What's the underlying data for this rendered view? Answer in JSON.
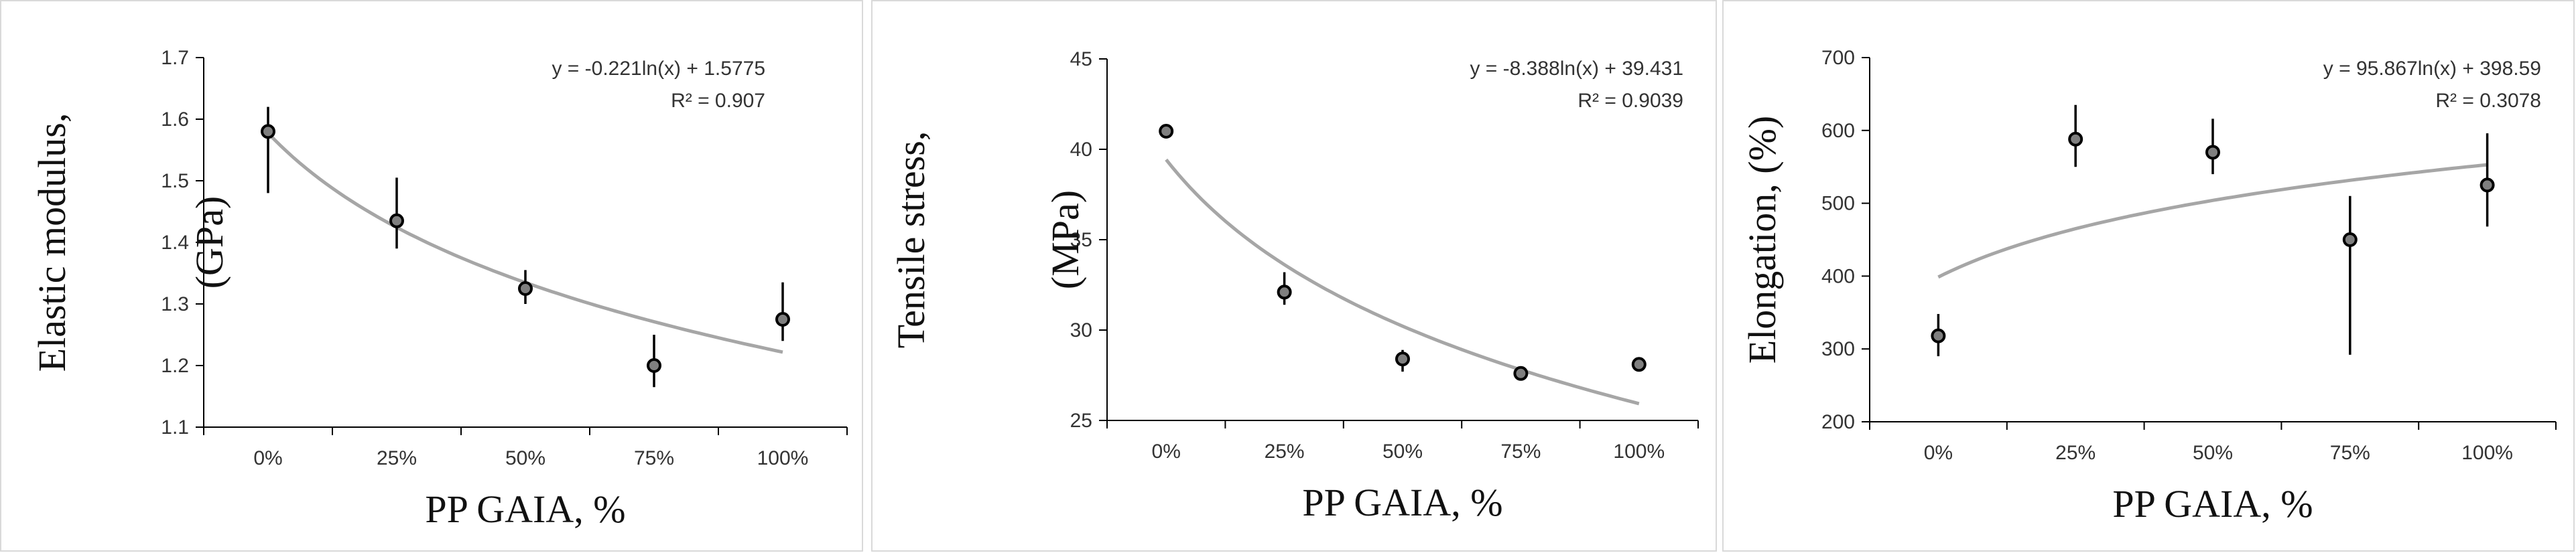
{
  "chart_data": [
    {
      "type": "scatter",
      "categories": [
        "0%",
        "25%",
        "50%",
        "75%",
        "100%"
      ],
      "x": [
        0,
        25,
        50,
        75,
        100
      ],
      "values": [
        1.58,
        1.435,
        1.325,
        1.2,
        1.275
      ],
      "error_bars": [
        [
          1.48,
          1.62
        ],
        [
          1.39,
          1.505
        ],
        [
          1.3,
          1.355
        ],
        [
          1.165,
          1.25
        ],
        [
          1.24,
          1.335
        ]
      ],
      "trendline": {
        "type": "logarithmic",
        "a": -0.221,
        "b": 1.5775
      },
      "equation": "y = -0.221ln(x) + 1.5775",
      "r2": "R² = 0.907",
      "xlabel": "PP GAIA, %",
      "ylabel": [
        "Elastic modulus,",
        "(GPa)"
      ],
      "ylim": [
        1.1,
        1.7
      ],
      "yticks": [
        "1.1",
        "1.2",
        "1.3",
        "1.4",
        "1.5",
        "1.6",
        "1.7"
      ],
      "grid": false
    },
    {
      "type": "scatter",
      "categories": [
        "0%",
        "25%",
        "50%",
        "75%",
        "100%"
      ],
      "x": [
        0,
        25,
        50,
        75,
        100
      ],
      "values": [
        41.0,
        32.1,
        28.4,
        27.6,
        28.1
      ],
      "error_bars": [
        [
          41.0,
          41.0
        ],
        [
          31.4,
          33.2
        ],
        [
          27.7,
          28.9
        ],
        [
          27.6,
          27.6
        ],
        [
          28.1,
          28.1
        ]
      ],
      "trendline": {
        "type": "logarithmic",
        "a": -8.388,
        "b": 39.431
      },
      "equation": "y = -8.388ln(x) + 39.431",
      "r2": "R² = 0.9039",
      "xlabel": "PP GAIA, %",
      "ylabel": [
        "Tensile stress,",
        "(MPa)"
      ],
      "ylim": [
        25,
        45
      ],
      "yticks": [
        "25",
        "30",
        "35",
        "40",
        "45"
      ],
      "grid": false
    },
    {
      "type": "scatter",
      "categories": [
        "0%",
        "25%",
        "50%",
        "75%",
        "100%"
      ],
      "x": [
        0,
        25,
        50,
        75,
        100
      ],
      "values": [
        318,
        588,
        570,
        450,
        525
      ],
      "error_bars": [
        [
          290,
          348
        ],
        [
          550,
          635
        ],
        [
          540,
          616
        ],
        [
          292,
          510
        ],
        [
          468,
          596
        ]
      ],
      "trendline": {
        "type": "logarithmic",
        "a": 95.867,
        "b": 398.59
      },
      "equation": "y = 95.867ln(x) + 398.59",
      "r2": "R² = 0.3078",
      "xlabel": "PP GAIA, %",
      "ylabel": [
        "Elongation, (%)"
      ],
      "ylim": [
        200,
        700
      ],
      "yticks": [
        "200",
        "300",
        "400",
        "500",
        "600",
        "700"
      ],
      "grid": false
    }
  ],
  "colors": {
    "trendline": "#a6a6a6",
    "marker_fill": "#7f7f7f",
    "marker_edge": "#000000",
    "axis": "#000000",
    "panel_border": "#d9d9d9"
  }
}
